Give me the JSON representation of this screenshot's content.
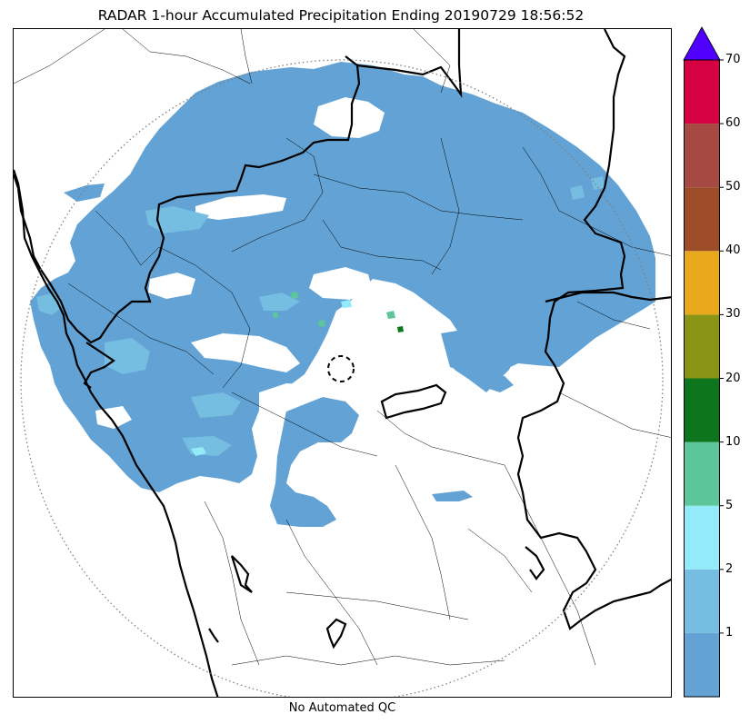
{
  "title": "RADAR 1-hour Accumulated Precipitation Ending 20190729 18:56:52",
  "footer_note": "No Automated QC",
  "colorbar": {
    "levels": [
      {
        "from": 0,
        "to": 1,
        "color": "#62a2d4"
      },
      {
        "from": 1,
        "to": 2,
        "color": "#76bde2"
      },
      {
        "from": 2,
        "to": 5,
        "color": "#93ebf9"
      },
      {
        "from": 5,
        "to": 10,
        "color": "#5cc59a"
      },
      {
        "from": 10,
        "to": 20,
        "color": "#0d751b"
      },
      {
        "from": 20,
        "to": 30,
        "color": "#8a9415"
      },
      {
        "from": 30,
        "to": 40,
        "color": "#e8a91c"
      },
      {
        "from": 40,
        "to": 50,
        "color": "#9c4d27"
      },
      {
        "from": 50,
        "to": 60,
        "color": "#a64942"
      },
      {
        "from": 60,
        "to": 70,
        "color": "#d50143"
      }
    ],
    "extend_color": "#5000ff",
    "tick_labels": [
      "1",
      "2",
      "5",
      "10",
      "20",
      "30",
      "40",
      "50",
      "60",
      "70"
    ]
  },
  "legend_colors": {
    "light_rain": "#62a2d4",
    "moderate": "#76bde2",
    "cyan": "#93ebf9",
    "border": "#000000",
    "range_ring": "#808080"
  }
}
